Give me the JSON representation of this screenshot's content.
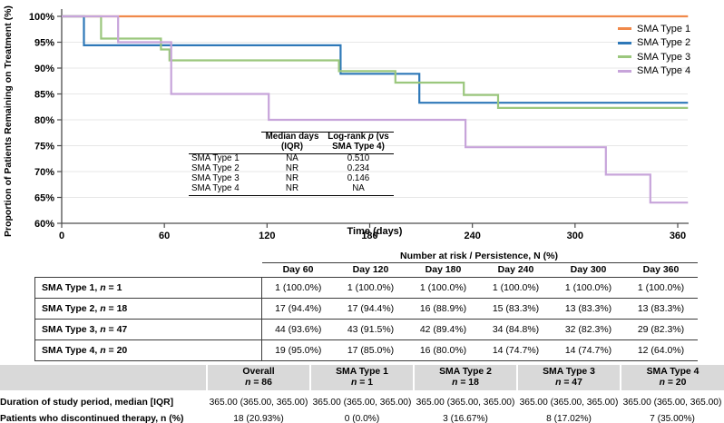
{
  "chart": {
    "y_title": "Proportion of Patients Remaining on Treatment (%)",
    "x_title": "Time (days)",
    "axis_color": "#4d4d4d",
    "grid_color": "#e7e7e7"
  },
  "chart_data": {
    "type": "line",
    "subtype": "kaplan-meier-step",
    "title": "",
    "xlabel": "Time (days)",
    "ylabel": "Proportion of Patients Remaining on Treatment (%)",
    "xlim": [
      0,
      366
    ],
    "ylim": [
      60,
      100
    ],
    "grid": "horizontal-only",
    "legend_position": "top-right",
    "x_ticks": [
      0,
      60,
      120,
      180,
      240,
      300,
      360
    ],
    "y_gridlines": [
      65,
      70,
      75,
      80,
      85,
      90,
      95
    ],
    "y_ticks": [
      {
        "label": "100%",
        "value": 100
      },
      {
        "label": "95%",
        "value": 95
      },
      {
        "label": "90%",
        "value": 90
      },
      {
        "label": "85%",
        "value": 85
      },
      {
        "label": "80%",
        "value": 80
      },
      {
        "label": "75%",
        "value": 75
      },
      {
        "label": "70%",
        "value": 70
      },
      {
        "label": "65%",
        "value": 65
      },
      {
        "label": "60%",
        "value": 60
      }
    ],
    "series": [
      {
        "name": "SMA Type 1",
        "color": "#f0894a",
        "step_points": [
          [
            0,
            100
          ],
          [
            366,
            100
          ]
        ]
      },
      {
        "name": "SMA Type 2",
        "color": "#2e78b8",
        "step_points": [
          [
            0,
            100
          ],
          [
            13,
            100
          ],
          [
            13,
            94.4
          ],
          [
            163,
            94.4
          ],
          [
            163,
            88.9
          ],
          [
            209,
            88.9
          ],
          [
            209,
            83.3
          ],
          [
            366,
            83.3
          ]
        ]
      },
      {
        "name": "SMA Type 3",
        "color": "#9bc77d",
        "step_points": [
          [
            0,
            100
          ],
          [
            23,
            100
          ],
          [
            23,
            95.7
          ],
          [
            58,
            95.7
          ],
          [
            58,
            93.6
          ],
          [
            63,
            93.6
          ],
          [
            63,
            91.5
          ],
          [
            162,
            91.5
          ],
          [
            162,
            89.4
          ],
          [
            195,
            89.4
          ],
          [
            195,
            87.2
          ],
          [
            235,
            87.2
          ],
          [
            235,
            84.8
          ],
          [
            255,
            84.8
          ],
          [
            255,
            82.3
          ],
          [
            366,
            82.3
          ]
        ]
      },
      {
        "name": "SMA Type 4",
        "color": "#c7a4da",
        "step_points": [
          [
            0,
            100
          ],
          [
            33,
            100
          ],
          [
            33,
            95
          ],
          [
            64,
            95
          ],
          [
            64,
            85
          ],
          [
            121,
            85
          ],
          [
            121,
            80
          ],
          [
            236,
            80
          ],
          [
            236,
            74.7
          ],
          [
            318,
            74.7
          ],
          [
            318,
            69.4
          ],
          [
            344,
            69.4
          ],
          [
            344,
            64
          ],
          [
            366,
            64
          ]
        ]
      }
    ]
  },
  "inset_table": {
    "col_median_header": {
      "line1": "Median days",
      "line2": "(IQR)"
    },
    "col_p_header": {
      "line1_pre": "Log-rank",
      "line1_italic": "p",
      "line1_post": "(vs",
      "line2": "SMA Type 4)"
    },
    "rows": [
      {
        "label": "SMA Type 1",
        "median": "NA",
        "p": "0.510"
      },
      {
        "label": "SMA Type 2",
        "median": "NR",
        "p": "0.234"
      },
      {
        "label": "SMA Type 3",
        "median": "NR",
        "p": "0.146"
      },
      {
        "label": "SMA Type 4",
        "median": "NR",
        "p": "NA"
      }
    ]
  },
  "risk_table": {
    "title": "Number at risk / Persistence, N (%)",
    "columns": [
      "Day 60",
      "Day 120",
      "Day 180",
      "Day 240",
      "Day 300",
      "Day 360"
    ],
    "rows": [
      {
        "label": "SMA Type 1",
        "n": "1",
        "values": [
          "1 (100.0%)",
          "1 (100.0%)",
          "1 (100.0%)",
          "1 (100.0%)",
          "1 (100.0%)",
          "1 (100.0%)"
        ]
      },
      {
        "label": "SMA Type 2",
        "n": "18",
        "values": [
          "17 (94.4%)",
          "17 (94.4%)",
          "16 (88.9%)",
          "15 (83.3%)",
          "13 (83.3%)",
          "13 (83.3%)"
        ]
      },
      {
        "label": "SMA Type 3",
        "n": "47",
        "values": [
          "44 (93.6%)",
          "43 (91.5%)",
          "42 (89.4%)",
          "34 (84.8%)",
          "32 (82.3%)",
          "29 (82.3%)"
        ]
      },
      {
        "label": "SMA Type 4",
        "n": "20",
        "values": [
          "19 (95.0%)",
          "17 (85.0%)",
          "16 (80.0%)",
          "14 (74.7%)",
          "14 (74.7%)",
          "12 (64.0%)"
        ]
      }
    ]
  },
  "summary_table": {
    "columns": [
      {
        "label": "Overall",
        "n": "86"
      },
      {
        "label": "SMA Type 1",
        "n": "1"
      },
      {
        "label": "SMA Type 2",
        "n": "18"
      },
      {
        "label": "SMA Type 3",
        "n": "47"
      },
      {
        "label": "SMA Type 4",
        "n": "20"
      }
    ],
    "rows": [
      {
        "label": "Duration of study period, median [IQR]",
        "values": [
          "365.00 (365.00, 365.00)",
          "365.00 (365.00, 365.00)",
          "365.00 (365.00, 365.00)",
          "365.00 (365.00, 365.00)",
          "365.00 (365.00, 365.00)"
        ]
      },
      {
        "label": "Patients who discontinued therapy, n (%)",
        "values": [
          "18 (20.93%)",
          "0 (0.0%)",
          "3 (16.67%)",
          "8 (17.02%)",
          "7 (35.00%)"
        ]
      }
    ]
  }
}
